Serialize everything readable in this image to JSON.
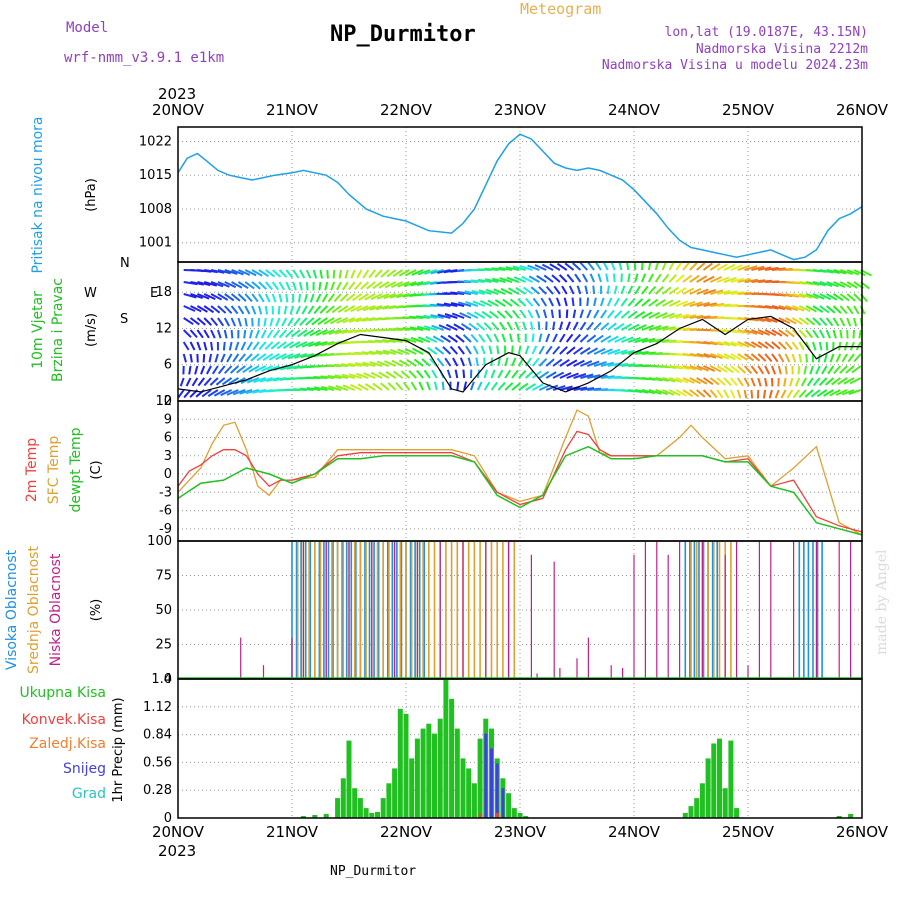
{
  "header": {
    "title": "NP_Durmitor",
    "meteogram_label": "Meteogram",
    "model_label": "Model",
    "model_value": "wrf-nmm_v3.9.1  e1km",
    "lonlat": "lon,lat (19.0187E, 43.15N)",
    "elevation": "Nadmorska Visina 2212m",
    "model_elevation": "Nadmorska Visina u modelu 2024.23m",
    "year_top": "2023",
    "year_bottom": "2023",
    "footer": "NP_Durmitor",
    "watermark": "made by Angel"
  },
  "colors": {
    "pressure": "#1ea0e6",
    "temp2m": "#f04040",
    "sfc": "#e0a030",
    "dewpt": "#20c020",
    "high_cloud": "#2090e0",
    "mid_cloud": "#e0a030",
    "low_cloud": "#c0208a",
    "total_precip": "#20c020",
    "conv_precip": "#f04040",
    "frozen_precip": "#f08030",
    "snow": "#4040e0",
    "graupel": "#30c0c0",
    "wind_speed_line": "#000000",
    "wind_gust_marker": "#e04040"
  },
  "chart_data": [
    {
      "type": "line",
      "panel": "pressure",
      "labels": [
        "Pritisak na nivou mora",
        "(hPa)"
      ],
      "ylim": [
        997,
        1025
      ],
      "yticks": [
        1001,
        1008,
        1015,
        1022
      ],
      "series": [
        {
          "x": [
            0,
            0.08,
            0.17,
            0.25,
            0.35,
            0.45,
            0.55,
            0.65,
            0.75,
            0.85,
            1.0,
            1.1,
            1.2,
            1.3,
            1.4,
            1.5,
            1.65,
            1.8,
            1.9,
            2.0,
            2.1,
            2.2,
            2.4,
            2.5,
            2.6,
            2.7,
            2.8,
            2.9,
            3.0,
            3.1,
            3.2,
            3.3,
            3.4,
            3.5,
            3.6,
            3.7,
            3.8,
            3.9,
            4.0,
            4.1,
            4.2,
            4.3,
            4.4,
            4.5,
            4.6,
            4.7,
            4.8,
            4.9,
            5.0,
            5.1,
            5.2,
            5.3,
            5.4,
            5.5,
            5.6,
            5.7,
            5.8,
            5.9,
            6.0
          ],
          "y": [
            1015.5,
            1018.5,
            1019.5,
            1018,
            1016,
            1015,
            1014.5,
            1014,
            1014.5,
            1015,
            1015.5,
            1016,
            1015.5,
            1015,
            1013.5,
            1011,
            1008,
            1006.5,
            1006,
            1005.5,
            1004.5,
            1003.5,
            1003,
            1005,
            1008,
            1013,
            1018,
            1021.5,
            1023.5,
            1022.5,
            1020,
            1017.5,
            1016.5,
            1016,
            1016.5,
            1016,
            1015,
            1014,
            1012,
            1009.5,
            1007,
            1004,
            1001.5,
            1000,
            999.5,
            999,
            998.5,
            998,
            998.5,
            999,
            999.5,
            998.5,
            997.5,
            998,
            999.5,
            1003.5,
            1006,
            1007,
            1008.5
          ]
        }
      ],
      "xtick_labels": [
        "20NOV",
        "21NOV",
        "22NOV",
        "23NOV",
        "24NOV",
        "25NOV",
        "26NOV"
      ]
    },
    {
      "type": "line",
      "panel": "wind",
      "labels": [
        "10m Vjetar",
        "Brzina i Pravac",
        "(m/s)"
      ],
      "compass_labels": [
        "N",
        "E",
        "S",
        "W"
      ],
      "ylim": [
        0,
        23
      ],
      "yticks": [
        0,
        6,
        12,
        18
      ],
      "series": [
        {
          "name": "speed",
          "x": [
            0,
            0.2,
            0.4,
            0.6,
            0.8,
            1.0,
            1.2,
            1.4,
            1.6,
            1.8,
            2.0,
            2.2,
            2.3,
            2.4,
            2.5,
            2.7,
            2.9,
            3.0,
            3.2,
            3.4,
            3.6,
            3.8,
            4.0,
            4.2,
            4.4,
            4.6,
            4.8,
            5.0,
            5.2,
            5.4,
            5.6,
            5.8,
            6.0
          ],
          "y": [
            2,
            1.5,
            2.5,
            3.5,
            5,
            6,
            7.5,
            9.5,
            11,
            10.5,
            10,
            8,
            5,
            2,
            1.5,
            6,
            8,
            7.5,
            3,
            1.5,
            3,
            5,
            8,
            9.5,
            12,
            13.5,
            11,
            13.5,
            14,
            12,
            7,
            9,
            9
          ]
        }
      ]
    },
    {
      "type": "line",
      "panel": "temperature",
      "labels": [
        "2m Temp",
        "SFC Temp",
        "dewpt Temp",
        "(C)"
      ],
      "ylim": [
        -11,
        12
      ],
      "yticks": [
        -9,
        -6,
        -3,
        0,
        3,
        6,
        9,
        12
      ],
      "series": [
        {
          "name": "2m Temp",
          "x": [
            0,
            0.1,
            0.2,
            0.3,
            0.4,
            0.5,
            0.6,
            0.7,
            0.8,
            0.9,
            1.0,
            1.2,
            1.4,
            1.6,
            1.8,
            2.0,
            2.2,
            2.4,
            2.6,
            2.8,
            3.0,
            3.2,
            3.4,
            3.5,
            3.6,
            3.7,
            3.8,
            4.0,
            4.2,
            4.4,
            4.6,
            4.8,
            5.0,
            5.2,
            5.4,
            5.6,
            5.8,
            6.0
          ],
          "y": [
            -2,
            0.5,
            1.5,
            3,
            4,
            4,
            3,
            0,
            -2,
            -1,
            -1,
            0,
            3,
            3.5,
            3.5,
            3.5,
            3.5,
            3.5,
            2,
            -3,
            -5,
            -4,
            4,
            7,
            6.5,
            4,
            3,
            3,
            3,
            3,
            3,
            2,
            2.5,
            -2,
            -1,
            -7,
            -8.5,
            -9.5
          ]
        },
        {
          "name": "SFC Temp",
          "x": [
            0,
            0.1,
            0.2,
            0.3,
            0.4,
            0.5,
            0.6,
            0.7,
            0.8,
            0.9,
            1.0,
            1.2,
            1.4,
            1.6,
            1.8,
            2.0,
            2.2,
            2.4,
            2.6,
            2.8,
            3.0,
            3.2,
            3.4,
            3.5,
            3.6,
            3.7,
            3.8,
            4.0,
            4.2,
            4.4,
            4.5,
            4.6,
            4.8,
            5.0,
            5.2,
            5.4,
            5.6,
            5.8,
            6.0
          ],
          "y": [
            -3,
            -1,
            1,
            5,
            8,
            8.5,
            4,
            -2,
            -3.5,
            -1,
            -1,
            -0.5,
            4,
            4,
            4,
            4,
            4,
            4,
            3,
            -3,
            -4.5,
            -3.5,
            6,
            10.5,
            9.5,
            3.5,
            3,
            3,
            3,
            6,
            8,
            6,
            2.5,
            3,
            -2,
            1,
            4.5,
            -8,
            -10
          ]
        },
        {
          "name": "dewpt Temp",
          "x": [
            0,
            0.2,
            0.4,
            0.6,
            0.8,
            1.0,
            1.2,
            1.4,
            1.6,
            1.8,
            2.0,
            2.2,
            2.4,
            2.6,
            2.8,
            3.0,
            3.2,
            3.4,
            3.6,
            3.8,
            4.0,
            4.2,
            4.4,
            4.6,
            4.8,
            5.0,
            5.2,
            5.4,
            5.6,
            5.8,
            6.0
          ],
          "y": [
            -4,
            -1.5,
            -1,
            1,
            0,
            -1.5,
            0,
            2.5,
            2.5,
            3,
            3,
            3,
            3,
            2,
            -3.5,
            -5.5,
            -3.5,
            3,
            4.5,
            2.5,
            2.5,
            3,
            3,
            3,
            2,
            2,
            -2,
            -3,
            -8,
            -9,
            -10
          ]
        }
      ]
    },
    {
      "type": "bar",
      "panel": "cloud",
      "labels": [
        "Visoka Oblacnost",
        "Srednja Oblacnost",
        "Niska Oblacnost",
        "(%)"
      ],
      "ylim": [
        0,
        100
      ],
      "yticks": [
        0,
        25,
        50,
        75,
        100
      ],
      "series": [
        {
          "name": "Visoka Oblacnost",
          "segments": [
            [
              1.0,
              2.2,
              100
            ],
            [
              4.45,
              4.75,
              100
            ],
            [
              5.45,
              5.65,
              100
            ]
          ]
        },
        {
          "name": "Srednja Oblacnost",
          "segments": [
            [
              1.05,
              2.95,
              100
            ],
            [
              4.5,
              4.85,
              100
            ]
          ]
        },
        {
          "name": "Niska Oblacnost",
          "x": [
            0.55,
            0.75,
            1.0,
            1.1,
            1.3,
            1.5,
            1.7,
            1.9,
            2.1,
            2.3,
            2.5,
            2.7,
            2.9,
            3.1,
            3.15,
            3.3,
            3.35,
            3.5,
            3.6,
            3.8,
            3.9,
            4.0,
            4.1,
            4.2,
            4.3,
            4.4,
            4.6,
            4.8,
            4.9,
            5.0,
            5.1,
            5.2,
            5.4,
            5.6,
            5.8,
            5.9
          ],
          "y": [
            30,
            10,
            30,
            100,
            100,
            100,
            100,
            100,
            100,
            100,
            100,
            100,
            100,
            90,
            4,
            85,
            8,
            15,
            30,
            10,
            8,
            90,
            100,
            100,
            90,
            100,
            100,
            90,
            100,
            10,
            100,
            100,
            100,
            100,
            100,
            100
          ]
        }
      ]
    },
    {
      "type": "bar",
      "panel": "precip",
      "labels": [
        "Ukupna Kisa",
        "Konvek.Kisa",
        "Zaledj.Kisa",
        "Snijeg",
        "Grad",
        "1hr Precip (mm)"
      ],
      "ylim": [
        0,
        1.4
      ],
      "yticks": [
        0,
        0.28,
        0.56,
        0.84,
        1.12,
        1.4
      ],
      "series": [
        {
          "name": "Ukupna Kisa",
          "x": [
            1.1,
            1.2,
            1.3,
            1.4,
            1.45,
            1.5,
            1.55,
            1.6,
            1.65,
            1.7,
            1.75,
            1.8,
            1.85,
            1.9,
            1.95,
            2.0,
            2.05,
            2.1,
            2.15,
            2.2,
            2.25,
            2.3,
            2.35,
            2.4,
            2.45,
            2.5,
            2.55,
            2.6,
            2.65,
            2.7,
            2.75,
            2.8,
            2.85,
            2.9,
            2.95,
            3.0,
            3.05,
            4.45,
            4.5,
            4.55,
            4.6,
            4.65,
            4.7,
            4.75,
            4.8,
            4.85,
            4.9,
            5.8,
            5.9
          ],
          "y": [
            0.02,
            0.03,
            0.04,
            0.2,
            0.4,
            0.78,
            0.3,
            0.2,
            0.1,
            0.05,
            0.06,
            0.2,
            0.35,
            0.5,
            1.1,
            1.05,
            0.6,
            0.8,
            0.9,
            0.95,
            0.85,
            1.0,
            1.4,
            1.2,
            0.9,
            0.6,
            0.5,
            0.35,
            0.8,
            1.0,
            0.9,
            0.6,
            0.4,
            0.25,
            0.1,
            0.05,
            0.02,
            0.05,
            0.12,
            0.2,
            0.35,
            0.6,
            0.75,
            0.8,
            0.3,
            0.78,
            0.1,
            0.02,
            0.04
          ]
        },
        {
          "name": "Snijeg",
          "x": [
            2.7,
            2.75,
            2.8,
            2.85
          ],
          "y": [
            0.85,
            0.7,
            0.55,
            0.3
          ]
        },
        {
          "name": "Konvek.Kisa",
          "x": [
            2.65,
            2.8
          ],
          "y": [
            0.04,
            0.05
          ]
        }
      ]
    }
  ]
}
